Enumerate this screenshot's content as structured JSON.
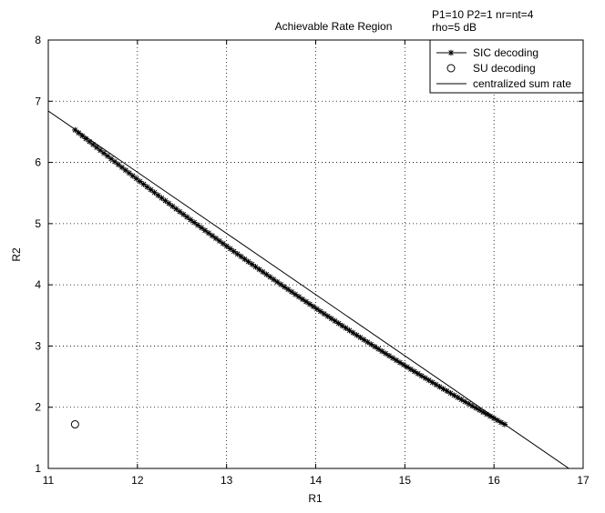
{
  "chart_data": {
    "type": "line",
    "title": "Achievable Rate Region",
    "annotations": [
      "P1=10 P2=1 nr=nt=4",
      "rho=5 dB"
    ],
    "xlabel": "R1",
    "ylabel": "R2",
    "xlim": [
      11,
      17
    ],
    "ylim": [
      1,
      8
    ],
    "xticks": [
      11,
      12,
      13,
      14,
      15,
      16,
      17
    ],
    "yticks": [
      1,
      2,
      3,
      4,
      5,
      6,
      7,
      8
    ],
    "grid": true,
    "legend_position": "top-right",
    "series": [
      {
        "name": "SIC decoding",
        "marker": "asterisk",
        "line": "solid",
        "x_range": [
          11.3,
          16.12
        ],
        "y_range": [
          6.53,
          1.72
        ],
        "n_points": 120
      },
      {
        "name": "SU decoding",
        "marker": "circle",
        "line": "none",
        "points": [
          {
            "x": 11.3,
            "y": 1.72
          }
        ]
      },
      {
        "name": "centralized sum rate",
        "marker": "none",
        "line": "solid",
        "points": [
          {
            "x": 11,
            "y": 6.84
          },
          {
            "x": 16.84,
            "y": 1.0
          }
        ]
      }
    ],
    "colors": {
      "line": "#000000",
      "grid": "#000000",
      "background": "#ffffff"
    }
  }
}
